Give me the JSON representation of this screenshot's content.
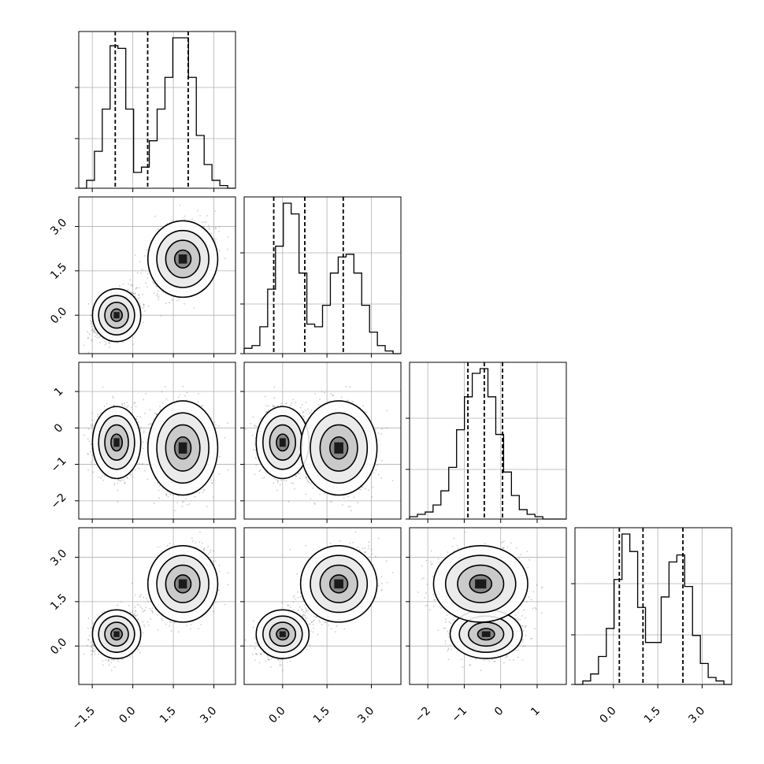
{
  "chart_data": {
    "type": "corner",
    "parameters": [
      "",
      "",
      "",
      ""
    ],
    "tick_labels": {
      "p0": [
        "−1.5",
        "0.0",
        "1.5",
        "3.0"
      ],
      "p1": [
        "0.0",
        "1.5",
        "3.0"
      ],
      "p2": [
        "−2",
        "−1",
        "0",
        "1"
      ],
      "p3": [
        "0.0",
        "1.5",
        "3.0"
      ]
    },
    "ranges": [
      [
        -2.0,
        3.8
      ],
      [
        -1.3,
        4.0
      ],
      [
        -2.5,
        1.8
      ],
      [
        -1.3,
        4.0
      ]
    ],
    "quantiles": [
      0.16,
      0.5,
      0.84
    ],
    "histograms": [
      {
        "param": 0,
        "quantile_lines": [
          -0.65,
          0.55,
          2.05
        ],
        "edges_start": -2.0,
        "bin_width": 0.29,
        "counts": [
          0,
          3,
          14,
          30,
          54,
          53,
          30,
          6,
          8,
          18,
          30,
          42,
          57,
          57,
          42,
          20,
          9,
          3,
          1,
          0
        ]
      },
      {
        "param": 1,
        "quantile_lines": [
          -0.3,
          0.75,
          2.05
        ],
        "edges_start": -1.3,
        "bin_width": 0.265,
        "counts": [
          2,
          3,
          10,
          24,
          40,
          56,
          52,
          30,
          11,
          10,
          18,
          30,
          36,
          37,
          30,
          18,
          8,
          3,
          1,
          0
        ]
      },
      {
        "param": 2,
        "quantile_lines": [
          -0.9,
          -0.45,
          0.05
        ],
        "edges_start": -2.5,
        "bin_width": 0.215,
        "counts": [
          1,
          2,
          3,
          6,
          12,
          22,
          38,
          52,
          62,
          64,
          52,
          36,
          20,
          10,
          4,
          2,
          1,
          0,
          0,
          0
        ]
      },
      {
        "param": 3,
        "quantile_lines": [
          0.2,
          1.0,
          2.35
        ],
        "edges_start": -1.3,
        "bin_width": 0.265,
        "counts": [
          0,
          1,
          3,
          8,
          16,
          30,
          43,
          38,
          22,
          12,
          12,
          25,
          35,
          37,
          28,
          14,
          6,
          2,
          1,
          0
        ]
      }
    ],
    "clusters": [
      {
        "weight": 0.5,
        "mean": [
          -0.6,
          0.0,
          -0.4,
          0.4
        ],
        "sd": [
          0.38,
          0.38,
          0.42,
          0.35
        ]
      },
      {
        "weight": 0.5,
        "mean": [
          1.85,
          1.9,
          -0.55,
          2.1
        ],
        "sd": [
          0.55,
          0.55,
          0.55,
          0.55
        ]
      }
    ],
    "contour_levels": [
      "",
      "",
      ""
    ],
    "grid": true,
    "legend": "none",
    "title": "",
    "xlabel": "",
    "ylabel": ""
  }
}
